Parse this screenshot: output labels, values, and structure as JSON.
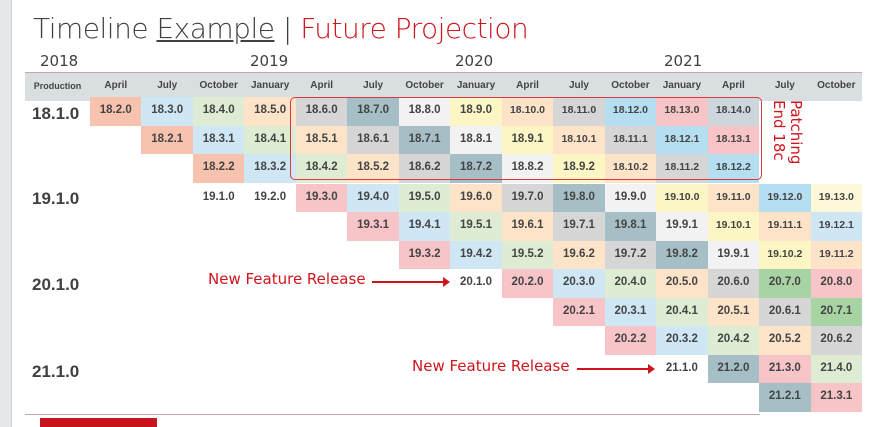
{
  "title": {
    "part1": "Timeline ",
    "part2": "Example",
    "sep": " | ",
    "part3": "Future Projection"
  },
  "years": [
    "2018",
    "2019",
    "2020",
    "2021"
  ],
  "header": {
    "first": "Production",
    "months": [
      "April",
      "July",
      "October",
      "January",
      "April",
      "July",
      "October",
      "January",
      "April",
      "July",
      "October",
      "January",
      "April",
      "July",
      "October"
    ]
  },
  "production": [
    "18.1.0",
    "19.1.0",
    "20.1.0",
    "21.1.0"
  ],
  "palette": {
    "salmon": "#f8c3ae",
    "blue": "#cfe6f5",
    "green": "#ddecd2",
    "peach": "#fde4c9",
    "gray": "#d6d6d6",
    "teal": "#a6bfc6",
    "white": "#f2f2f2",
    "yellow": "#fbf6c3",
    "pink": "#f7c4c8",
    "greendark": "#a8d3a2",
    "skyblue": "#b6def1",
    "grayblue": "#cdd6dc",
    "lightyellow": "#fdf9d8"
  },
  "rows": [
    {
      "start": 0,
      "cells": [
        [
          "18.2.0",
          "salmon"
        ],
        [
          "18.3.0",
          "blue"
        ],
        [
          "18.4.0",
          "green"
        ],
        [
          "18.5.0",
          "peach"
        ],
        [
          "18.6.0",
          "gray"
        ],
        [
          "18.7.0",
          "teal"
        ],
        [
          "18.8.0",
          "white"
        ],
        [
          "18.9.0",
          "yellow"
        ],
        [
          "18.10.0",
          "peach"
        ],
        [
          "18.11.0",
          "gray"
        ],
        [
          "18.12.0",
          "skyblue"
        ],
        [
          "18.13.0",
          "pink"
        ],
        [
          "18.14.0",
          "grayblue"
        ]
      ]
    },
    {
      "start": 1,
      "cells": [
        [
          "18.2.1",
          "salmon"
        ],
        [
          "18.3.1",
          "blue"
        ],
        [
          "18.4.1",
          "green"
        ],
        [
          "18.5.1",
          "peach"
        ],
        [
          "18.6.1",
          "gray"
        ],
        [
          "18.7.1",
          "teal"
        ],
        [
          "18.8.1",
          "white"
        ],
        [
          "18.9.1",
          "yellow"
        ],
        [
          "18.10.1",
          "peach"
        ],
        [
          "18.11.1",
          "gray"
        ],
        [
          "18.12.1",
          "skyblue"
        ],
        [
          "18.13.1",
          "pink"
        ]
      ]
    },
    {
      "start": 2,
      "cells": [
        [
          "18.2.2",
          "salmon"
        ],
        [
          "18.3.2",
          "blue"
        ],
        [
          "18.4.2",
          "green"
        ],
        [
          "18.5.2",
          "peach"
        ],
        [
          "18.6.2",
          "gray"
        ],
        [
          "18.7.2",
          "teal"
        ],
        [
          "18.8.2",
          "white"
        ],
        [
          "18.9.2",
          "yellow"
        ],
        [
          "18.10.2",
          "peach"
        ],
        [
          "18.11.2",
          "gray"
        ],
        [
          "18.12.2",
          "skyblue"
        ]
      ]
    },
    {
      "start": 2,
      "cells": [
        [
          "19.1.0",
          ""
        ],
        [
          "19.2.0",
          ""
        ],
        [
          "19.3.0",
          "pink"
        ],
        [
          "19.4.0",
          "blue"
        ],
        [
          "19.5.0",
          "green"
        ],
        [
          "19.6.0",
          "peach"
        ],
        [
          "19.7.0",
          "gray"
        ],
        [
          "19.8.0",
          "teal"
        ],
        [
          "19.9.0",
          "white"
        ],
        [
          "19.10.0",
          "yellow"
        ],
        [
          "19.11.0",
          "peach"
        ],
        [
          "19.12.0",
          "skyblue"
        ],
        [
          "19.13.0",
          "lightyellow"
        ]
      ]
    },
    {
      "start": 5,
      "cells": [
        [
          "19.3.1",
          "pink"
        ],
        [
          "19.4.1",
          "blue"
        ],
        [
          "19.5.1",
          "green"
        ],
        [
          "19.6.1",
          "peach"
        ],
        [
          "19.7.1",
          "gray"
        ],
        [
          "19.8.1",
          "teal"
        ],
        [
          "19.9.1",
          "white"
        ],
        [
          "19.10.1",
          "yellow"
        ],
        [
          "19.11.1",
          "peach"
        ],
        [
          "19.12.1",
          "blue"
        ]
      ]
    },
    {
      "start": 6,
      "cells": [
        [
          "19.3.2",
          "pink"
        ],
        [
          "19.4.2",
          "blue"
        ],
        [
          "19.5.2",
          "green"
        ],
        [
          "19.6.2",
          "peach"
        ],
        [
          "19.7.2",
          "gray"
        ],
        [
          "19.8.2",
          "teal"
        ],
        [
          "19.9.1",
          "white"
        ],
        [
          "19.10.2",
          "yellow"
        ],
        [
          "19.11.2",
          "peach"
        ]
      ]
    },
    {
      "start": 7,
      "cells": [
        [
          "20.1.0",
          ""
        ],
        [
          "20.2.0",
          "pink"
        ],
        [
          "20.3.0",
          "blue"
        ],
        [
          "20.4.0",
          "green"
        ],
        [
          "20.5.0",
          "peach"
        ],
        [
          "20.6.0",
          "gray"
        ],
        [
          "20.7.0",
          "greendark"
        ],
        [
          "20.8.0",
          "pink"
        ]
      ]
    },
    {
      "start": 9,
      "cells": [
        [
          "20.2.1",
          "pink"
        ],
        [
          "20.3.1",
          "blue"
        ],
        [
          "20.4.1",
          "green"
        ],
        [
          "20.5.1",
          "peach"
        ],
        [
          "20.6.1",
          "gray"
        ],
        [
          "20.7.1",
          "greendark"
        ]
      ]
    },
    {
      "start": 10,
      "cells": [
        [
          "20.2.2",
          "pink"
        ],
        [
          "20.3.2",
          "blue"
        ],
        [
          "20.4.2",
          "green"
        ],
        [
          "20.5.2",
          "peach"
        ],
        [
          "20.6.2",
          "gray"
        ]
      ]
    },
    {
      "start": 11,
      "cells": [
        [
          "21.1.0",
          ""
        ],
        [
          "21.2.0",
          "teal"
        ],
        [
          "21.3.0",
          "pink"
        ],
        [
          "21.4.0",
          "green"
        ]
      ]
    },
    {
      "start": 13,
      "cells": [
        [
          "21.2.1",
          "teal"
        ],
        [
          "21.3.1",
          "pink"
        ]
      ]
    }
  ],
  "annotations": {
    "patching": "Patching",
    "end": "End 18c",
    "new_feature_1": "New Feature Release",
    "new_feature_2": "New Feature Release"
  },
  "accent": "#d0141c"
}
